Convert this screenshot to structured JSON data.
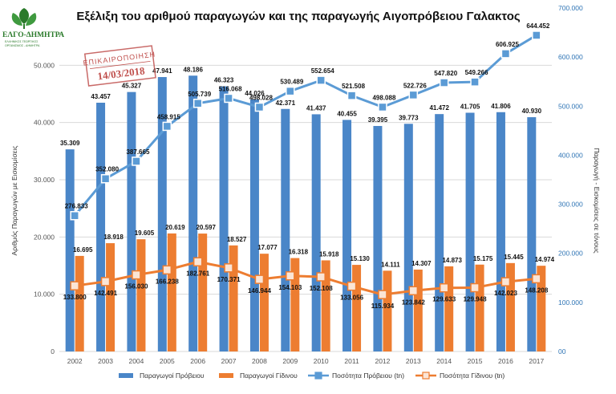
{
  "logo": {
    "name": "ΕΛΓΟ-ΔΗΜΗΤΡΑ",
    "subtitle_lines": [
      "ΕΛΛΗΝΙΚΟΣ ΓΕΩΡΓΙΚΟΣ",
      "ΟΡΓΑΝΙΣΜΟΣ - ΔΗΜΗΤΡΑ"
    ]
  },
  "stamp": {
    "label": "ΕΠΙΚΑΙΡΟΠΟΙΗΣΗ",
    "date": "14/03/2018"
  },
  "colors": {
    "blue": "#4a86c8",
    "orange": "#ed7d31",
    "blue_line": "#5b9bd5",
    "right_axis": "#2e74b5",
    "grid": "#d9d9d9"
  },
  "chart_data": {
    "type": "bar",
    "title": "Εξέλιξη του αριθμού παραγωγών και της παραγωγής Αιγοπρόβειου Γαλακτος",
    "ylabel": "Αριθμός Παραγωγών με Εισκομίσεις",
    "y2label": "Παραγωγή - Εισκομίσεις σε τόνους",
    "ylim": [
      0,
      60000
    ],
    "y2lim": [
      0,
      700000
    ],
    "yticks": [
      "0",
      "10.000",
      "20.000",
      "30.000",
      "40.000",
      "50.000"
    ],
    "y2ticks": [
      "00",
      "100.000",
      "200.000",
      "300.000",
      "400.000",
      "500.000",
      "600.000",
      "700.000"
    ],
    "categories": [
      "2002",
      "2003",
      "2004",
      "2005",
      "2006",
      "2007",
      "2008",
      "2009",
      "2010",
      "2011",
      "2012",
      "2013",
      "2014",
      "2015",
      "2016",
      "2017"
    ],
    "series": [
      {
        "name": "Παραγωγοί Πρόβειου",
        "kind": "bar",
        "axis": "left",
        "values": [
          35309,
          43457,
          45327,
          47941,
          48186,
          46323,
          44026,
          42371,
          41437,
          40455,
          39395,
          39773,
          41472,
          41705,
          41806,
          40930
        ],
        "labels": [
          "35.309",
          "43.457",
          "45.327",
          "47.941",
          "48.186",
          "46.323",
          "44.026",
          "42.371",
          "41.437",
          "40.455",
          "39.395",
          "39.773",
          "41.472",
          "41.705",
          "41.806",
          "40.930"
        ]
      },
      {
        "name": "Παραγωγοί Γίδινου",
        "kind": "bar",
        "axis": "left",
        "values": [
          16695,
          18918,
          19605,
          20619,
          20597,
          18527,
          17077,
          16318,
          15918,
          15130,
          14111,
          14307,
          14873,
          15175,
          15445,
          14974
        ],
        "labels": [
          "16.695",
          "18.918",
          "19.605",
          "20.619",
          "20.597",
          "18.527",
          "17.077",
          "16.318",
          "15.918",
          "15.130",
          "14.111",
          "14.307",
          "14.873",
          "15.175",
          "15.445",
          "14.974"
        ]
      },
      {
        "name": "Ποσότητα Πρόβειου (tn)",
        "kind": "line",
        "axis": "right",
        "values": [
          276833,
          352080,
          387665,
          458915,
          505739,
          516068,
          498028,
          530489,
          552654,
          521508,
          498088,
          522726,
          547820,
          549266,
          606925,
          644452
        ],
        "labels": [
          "276.833",
          "352.080",
          "387.665",
          "458.915",
          "505.739",
          "516.068",
          "498.028",
          "530.489",
          "552.654",
          "521.508",
          "498.088",
          "522.726",
          "547.820",
          "549.266",
          "606.925",
          "644.452"
        ]
      },
      {
        "name": "Ποσότητα Γίδινου (tn)",
        "kind": "line",
        "axis": "right",
        "values": [
          133800,
          142491,
          156030,
          166238,
          182761,
          170371,
          146944,
          154103,
          152108,
          133056,
          115934,
          123842,
          129633,
          129948,
          142023,
          148208
        ],
        "labels": [
          "133.800",
          "142.491",
          "156.030",
          "166.238",
          "182.761",
          "170.371",
          "146.944",
          "154.103",
          "152.108",
          "133.056",
          "115.934",
          "123.842",
          "129.633",
          "129.948",
          "142.023",
          "148.208"
        ]
      }
    ],
    "grid": true,
    "legend": "bottom"
  }
}
